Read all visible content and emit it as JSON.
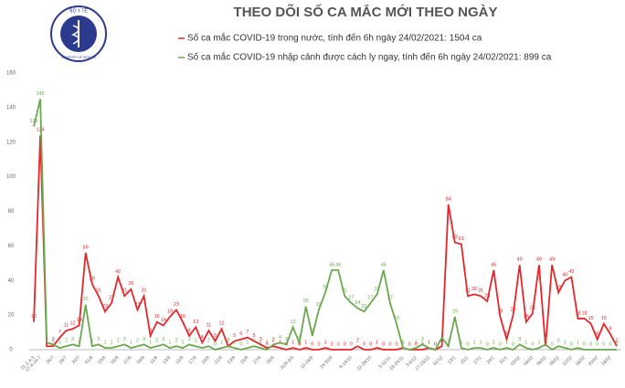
{
  "logo": {
    "top": "BỘ Y TẾ",
    "bottom": "MINISTRY OF HEALTH"
  },
  "chart_data": {
    "type": "line",
    "title": "THEO DÕI SỐ CA MẮC MỚI THEO NGÀY",
    "categories": [
      "21-1-4-3",
      "17-4-24-7",
      null,
      "26/7",
      null,
      "28/7",
      null,
      "30/7",
      null,
      "01/8",
      null,
      "03/8",
      null,
      "05/8",
      null,
      "07/8",
      null,
      "09/8",
      null,
      "11/8",
      null,
      "13/8",
      null,
      "15/8",
      null,
      "17/8",
      null,
      "19/8",
      null,
      "21/8",
      null,
      "23/8",
      null,
      "25/8",
      null,
      "27/8",
      null,
      "29/8",
      null,
      null,
      "31/8-9/9",
      null,
      null,
      "10-16/9",
      null,
      null,
      "24-30/9",
      null,
      null,
      "8-14/10",
      null,
      null,
      "22-28/10",
      null,
      null,
      "5-11/11",
      null,
      "19-25/11",
      null,
      "3-9/12",
      null,
      "17-23/12",
      null,
      "31/12",
      null,
      "13/1",
      null,
      "25/1",
      null,
      "27/1",
      null,
      "29/1",
      null,
      "31/1",
      null,
      "02/02",
      null,
      "04/02",
      null,
      "06/02",
      null,
      "08/02",
      null,
      "12/02",
      null,
      "16/02",
      null,
      "20/02",
      null,
      "24/02",
      null
    ],
    "series": [
      {
        "name": "Số ca mắc COVID-19 trong nước, tính đến 6h ngày 24/02/2021: 1504 ca",
        "color": "#e8262a",
        "values": [
          16,
          124,
          2,
          2,
          7,
          11,
          12,
          14,
          56,
          38,
          31,
          22,
          27,
          42,
          31,
          35,
          23,
          31,
          8,
          16,
          14,
          19,
          23,
          16,
          8,
          13,
          4,
          11,
          5,
          12,
          2,
          5,
          6,
          7,
          5,
          3,
          1,
          2,
          1,
          0,
          1,
          0,
          1,
          0,
          0,
          1,
          0,
          0,
          0,
          0,
          2,
          0,
          0,
          1,
          0,
          0,
          0,
          1,
          0,
          0,
          0,
          1,
          0,
          2,
          84,
          62,
          61,
          31,
          32,
          31,
          28,
          46,
          19,
          6,
          20,
          49,
          16,
          21,
          49,
          2,
          49,
          33,
          40,
          42,
          18,
          18,
          15,
          6,
          15,
          9,
          2
        ]
      },
      {
        "name": "Số ca mắc COVID-19 nhập cảnh được cách ly ngay, tính đến 6h ngày 24/02/2021: 899 ca",
        "color": "#6aa84f",
        "values": [
          129,
          145,
          4,
          3,
          1,
          2,
          3,
          2,
          26,
          2,
          3,
          1,
          1,
          2,
          3,
          1,
          2,
          3,
          1,
          2,
          3,
          1,
          2,
          1,
          3,
          2,
          1,
          2,
          0,
          1,
          2,
          1,
          0,
          1,
          2,
          1,
          0,
          3,
          4,
          3,
          13,
          4,
          25,
          8,
          23,
          33,
          46,
          46,
          31,
          27,
          24,
          22,
          27,
          32,
          46,
          27,
          15,
          1,
          0,
          1,
          3,
          1,
          0,
          7,
          2,
          19,
          1,
          0,
          1,
          1,
          0,
          1,
          0,
          1,
          0,
          3,
          1,
          0,
          1,
          3,
          0,
          2,
          1,
          0,
          1,
          0,
          0,
          0,
          0,
          0,
          0
        ]
      }
    ],
    "ylim": [
      0,
      160
    ],
    "yticks": [
      0,
      20,
      40,
      60,
      80,
      100,
      120,
      140,
      160
    ],
    "grid": false
  }
}
